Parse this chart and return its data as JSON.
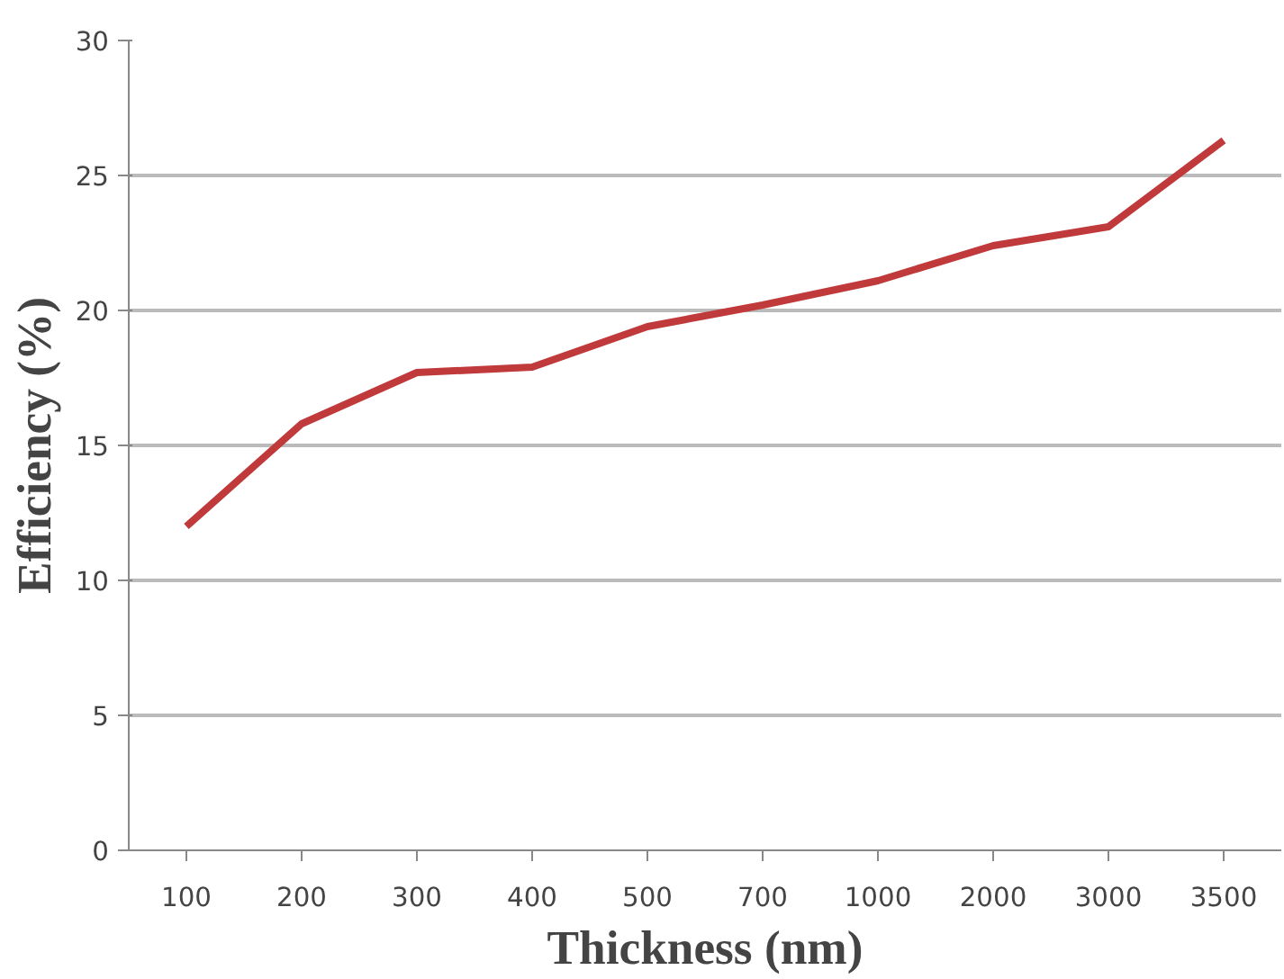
{
  "chart_data": {
    "type": "line",
    "xlabel": "Thickness (nm)",
    "ylabel": "Efficiency (%)",
    "categories": [
      "100",
      "200",
      "300",
      "400",
      "500",
      "700",
      "1000",
      "2000",
      "3000",
      "3500"
    ],
    "series": [
      {
        "color": "#c0393b",
        "values": [
          12.0,
          15.8,
          17.7,
          17.9,
          19.4,
          20.2,
          21.1,
          22.4,
          23.1,
          26.3
        ]
      }
    ],
    "ylim": [
      0,
      30
    ],
    "yticks": [
      0,
      5,
      10,
      15,
      20,
      25,
      30
    ],
    "grid": "y",
    "marker": "none",
    "line_style": "solid"
  }
}
